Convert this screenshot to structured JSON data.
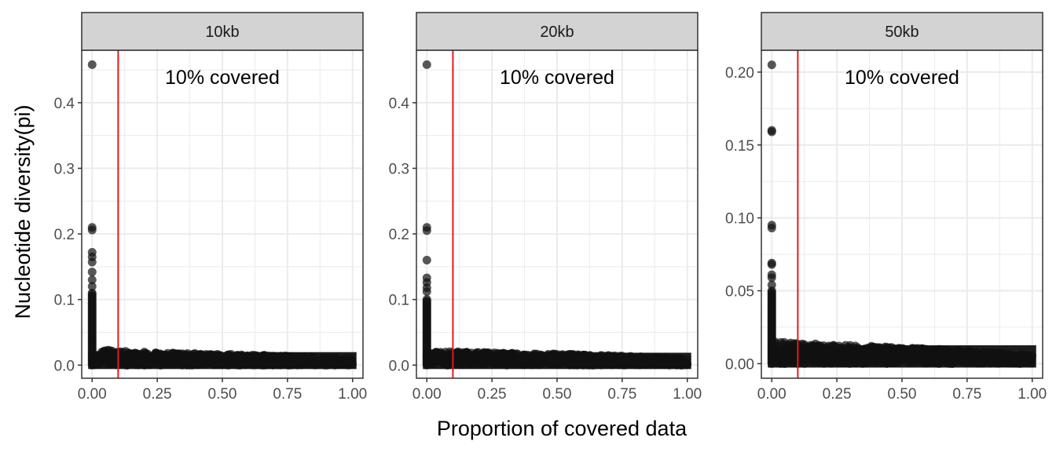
{
  "chart_data": {
    "type": "scatter",
    "xlabel": "Proportion of covered data",
    "ylabel": "Nucleotide diversity(pi)",
    "colors": {
      "points": "#111111",
      "vline": "#e31a1c",
      "strip_fill": "#d3d3d3",
      "grid": "#ebebeb",
      "panel_border": "#333333"
    },
    "vline_x": 0.1,
    "panels": [
      {
        "label": "10kb",
        "annotation": "10% covered",
        "xlim": [
          -0.04,
          1.04
        ],
        "ylim": [
          -0.02,
          0.48
        ],
        "x_ticks": [
          0.0,
          0.25,
          0.5,
          0.75,
          1.0
        ],
        "x_tick_labels": [
          "0.00",
          "0.25",
          "0.50",
          "0.75",
          "1.00"
        ],
        "y_ticks": [
          0.0,
          0.1,
          0.2,
          0.3,
          0.4
        ],
        "y_tick_labels": [
          "0.0",
          "0.1",
          "0.2",
          "0.3",
          "0.4"
        ],
        "points": [
          [
            0.0,
            0.458
          ],
          [
            0.0,
            0.21
          ],
          [
            0.0,
            0.206
          ],
          [
            0.0,
            0.172
          ],
          [
            0.0,
            0.165
          ],
          [
            0.0,
            0.157
          ],
          [
            0.0,
            0.142
          ],
          [
            0.0,
            0.13
          ],
          [
            0.0,
            0.12
          ]
        ],
        "spike_top": 0.11,
        "tail": [
          [
            0.0,
            0.03
          ],
          [
            0.01,
            0.026
          ],
          [
            0.02,
            0.024
          ],
          [
            0.1,
            0.022
          ],
          [
            0.25,
            0.019
          ],
          [
            0.5,
            0.017
          ],
          [
            0.75,
            0.014
          ],
          [
            1.0,
            0.01
          ]
        ]
      },
      {
        "label": "20kb",
        "annotation": "10% covered",
        "xlim": [
          -0.04,
          1.04
        ],
        "ylim": [
          -0.02,
          0.48
        ],
        "x_ticks": [
          0.0,
          0.25,
          0.5,
          0.75,
          1.0
        ],
        "x_tick_labels": [
          "0.00",
          "0.25",
          "0.50",
          "0.75",
          "1.00"
        ],
        "y_ticks": [
          0.0,
          0.1,
          0.2,
          0.3,
          0.4
        ],
        "y_tick_labels": [
          "0.0",
          "0.1",
          "0.2",
          "0.3",
          "0.4"
        ],
        "points": [
          [
            0.0,
            0.458
          ],
          [
            0.0,
            0.21
          ],
          [
            0.0,
            0.205
          ],
          [
            0.0,
            0.16
          ],
          [
            0.0,
            0.133
          ],
          [
            0.0,
            0.126
          ],
          [
            0.0,
            0.118
          ],
          [
            0.0,
            0.112
          ]
        ],
        "spike_top": 0.1,
        "tail": [
          [
            0.0,
            0.03
          ],
          [
            0.01,
            0.025
          ],
          [
            0.02,
            0.022
          ],
          [
            0.1,
            0.021
          ],
          [
            0.25,
            0.019
          ],
          [
            0.5,
            0.017
          ],
          [
            0.75,
            0.014
          ],
          [
            1.0,
            0.01
          ]
        ]
      },
      {
        "label": "50kb",
        "annotation": "10% covered",
        "xlim": [
          -0.04,
          1.04
        ],
        "ylim": [
          -0.01,
          0.215
        ],
        "x_ticks": [
          0.0,
          0.25,
          0.5,
          0.75,
          1.0
        ],
        "x_tick_labels": [
          "0.00",
          "0.25",
          "0.50",
          "0.75",
          "1.00"
        ],
        "y_ticks": [
          0.0,
          0.05,
          0.1,
          0.15,
          0.2
        ],
        "y_tick_labels": [
          "0.00",
          "0.05",
          "0.10",
          "0.15",
          "0.20"
        ],
        "points": [
          [
            0.0,
            0.205
          ],
          [
            0.0,
            0.16
          ],
          [
            0.0,
            0.159
          ],
          [
            0.0,
            0.095
          ],
          [
            0.0,
            0.093
          ],
          [
            0.0,
            0.069
          ],
          [
            0.0,
            0.068
          ],
          [
            0.0,
            0.061
          ],
          [
            0.0,
            0.059
          ],
          [
            0.0,
            0.054
          ]
        ],
        "spike_top": 0.05,
        "tail": [
          [
            0.0,
            0.018
          ],
          [
            0.01,
            0.016
          ],
          [
            0.02,
            0.015
          ],
          [
            0.1,
            0.014
          ],
          [
            0.25,
            0.013
          ],
          [
            0.5,
            0.011
          ],
          [
            0.75,
            0.009
          ],
          [
            1.0,
            0.006
          ]
        ]
      }
    ]
  }
}
